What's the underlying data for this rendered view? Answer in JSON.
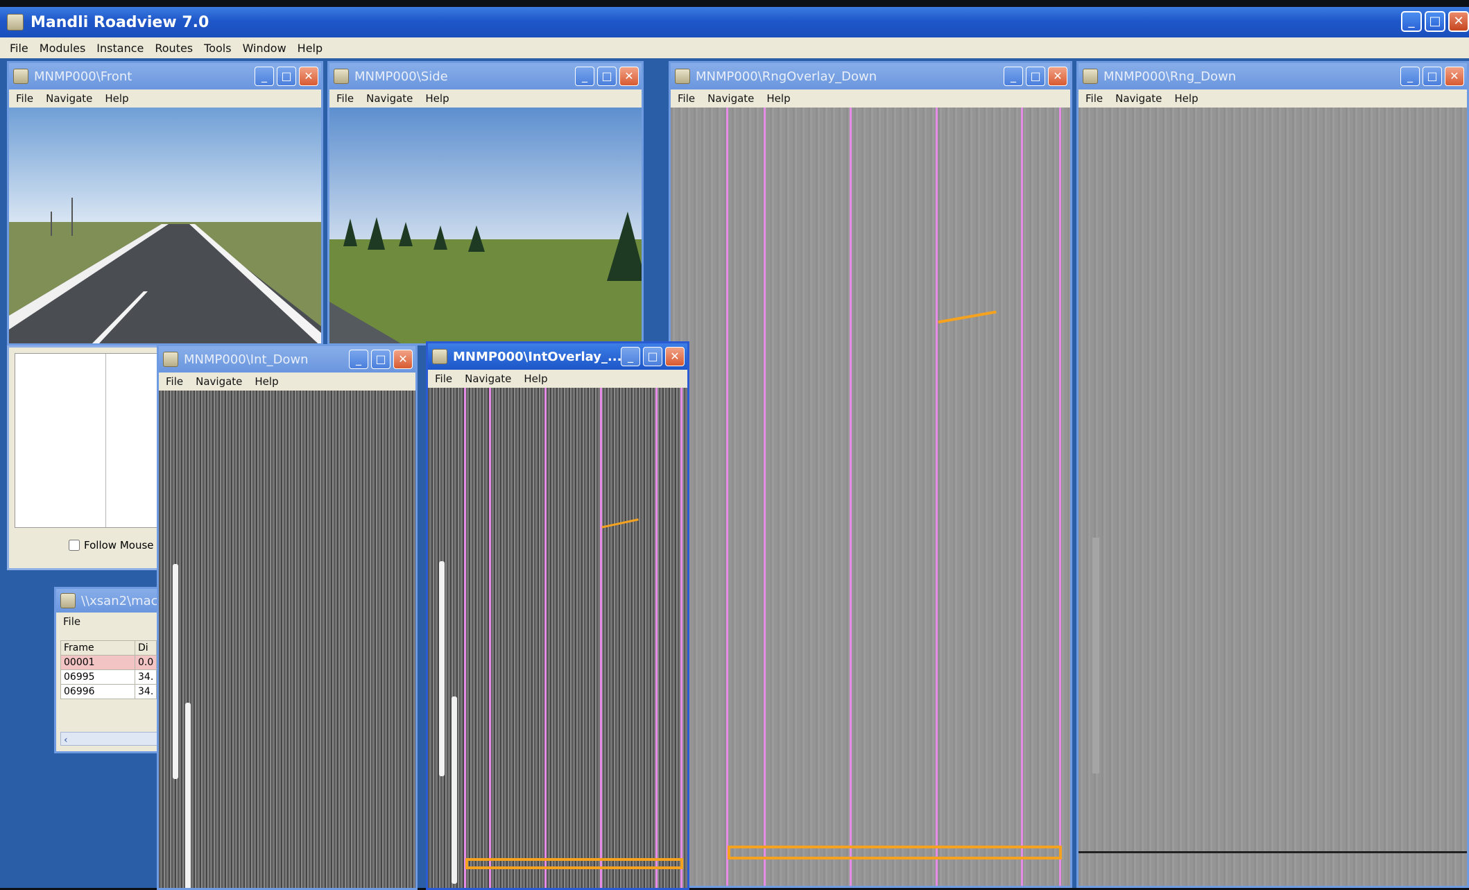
{
  "app": {
    "title": "Mandli Roadview 7.0"
  },
  "main_menu": [
    "File",
    "Modules",
    "Instance",
    "Routes",
    "Tools",
    "Window",
    "Help"
  ],
  "sub_menu": [
    "File",
    "Navigate",
    "Help"
  ],
  "windows": {
    "front": {
      "title": "MNMP000\\Front"
    },
    "side": {
      "title": "MNMP000\\Side"
    },
    "rng_overlay": {
      "title": "MNMP000\\RngOverlay_Down"
    },
    "rng_down": {
      "title": "MNMP000\\Rng_Down"
    },
    "int_down": {
      "title": "MNMP000\\Int_Down"
    },
    "int_overlay": {
      "title": "MNMP000\\IntOverlay_..."
    },
    "xsan": {
      "title": "\\\\xsan2\\mac",
      "menu_file": "File"
    }
  },
  "follow_mouse": {
    "label": "Follow Mouse",
    "checked": false
  },
  "frame_table": {
    "headers": [
      "Frame",
      "Di"
    ],
    "rows": [
      [
        "00001",
        "0.0"
      ],
      [
        "06995",
        "34."
      ],
      [
        "06996",
        "34."
      ]
    ]
  },
  "colors": {
    "accent": "#1d56c8",
    "overlay_line": "#e58de6",
    "crack_marker": "#f5a21f"
  }
}
